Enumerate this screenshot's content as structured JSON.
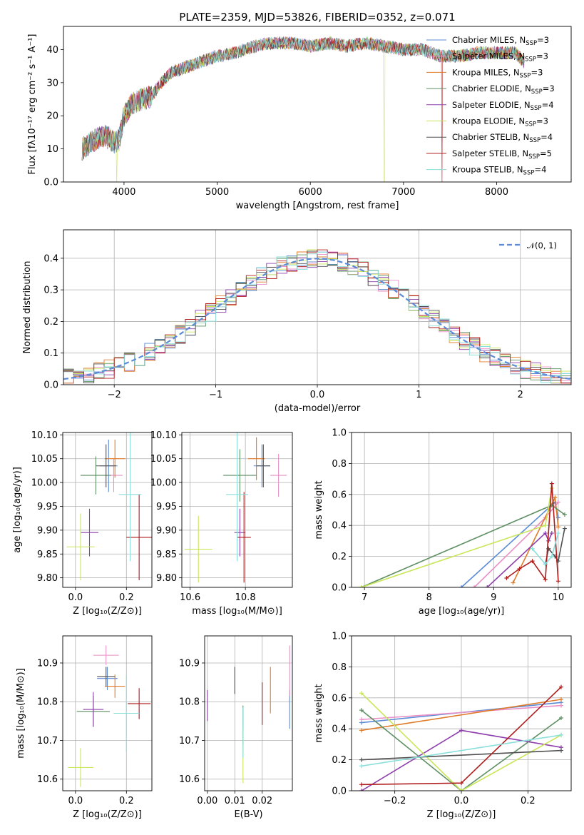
{
  "palette": [
    "#5b8bd6",
    "#e98fc6",
    "#e07b2a",
    "#5e8f63",
    "#8e3fac",
    "#c9e65a",
    "#505050",
    "#b01c1c",
    "#8adfdb"
  ],
  "chart_data": [
    {
      "id": "spectrum",
      "type": "line",
      "title": "PLATE=2359, MJD=53826, FIBERID=0352, z=0.071",
      "xlabel": "wavelength [Angstrom, rest frame]",
      "ylabel": "Flux [fλ10⁻¹⁷ erg cm⁻² s⁻¹ A⁻¹]",
      "xlim": [
        3350,
        8800
      ],
      "ylim": [
        0,
        47
      ],
      "xticks": [
        4000,
        5000,
        6000,
        7000,
        8000
      ],
      "yticks": [
        0,
        10,
        20,
        30,
        40
      ],
      "grid": false,
      "legend": "top-right",
      "continuum": {
        "x": [
          3550,
          3650,
          3700,
          3800,
          3900,
          3950,
          4000,
          4100,
          4200,
          4300,
          4400,
          4500,
          4700,
          4900,
          5000,
          5200,
          5400,
          5600,
          5800,
          6000,
          6200,
          6400,
          6600,
          6800,
          7000,
          7200,
          7400,
          7600,
          7800,
          8000,
          8200,
          8300
        ],
        "y": [
          10,
          12,
          13,
          14,
          12,
          13,
          20,
          24,
          25,
          26,
          30,
          33,
          35,
          37,
          38,
          39,
          41,
          42,
          42,
          41,
          42,
          41,
          42,
          41,
          40,
          40,
          38,
          38,
          39,
          39,
          39,
          36
        ]
      },
      "series": [
        {
          "name": "Chabrier MILES, N_SSP=3"
        },
        {
          "name": "Salpeter MILES, N_SSP=3"
        },
        {
          "name": "Kroupa MILES, N_SSP=3"
        },
        {
          "name": "Chabrier ELODIE, N_SSP=3"
        },
        {
          "name": "Salpeter ELODIE, N_SSP=4"
        },
        {
          "name": "Kroupa ELODIE, N_SSP=3"
        },
        {
          "name": "Chabrier STELIB, N_SSP=4"
        },
        {
          "name": "Salpeter STELIB, N_SSP=5"
        },
        {
          "name": "Kroupa STELIB, N_SSP=4"
        }
      ]
    },
    {
      "id": "residuals",
      "type": "histogram",
      "xlabel": "(data-model)/error",
      "ylabel": "Normed distribution",
      "xlim": [
        -2.5,
        2.5
      ],
      "ylim": [
        0,
        0.49
      ],
      "xticks": [
        -2,
        -1,
        0,
        1,
        2
      ],
      "yticks": [
        0.0,
        0.1,
        0.2,
        0.3,
        0.4
      ],
      "grid": true,
      "legend": "top-right",
      "reference_curve": {
        "name": "𝒩(0, 1)",
        "mean": 0,
        "sigma": 1,
        "style": "dashed"
      },
      "bin_width": 0.1
    },
    {
      "id": "age-vs-Z",
      "type": "errorbar",
      "xlabel": "Z [log₁₀(Z/Z⊙)]",
      "ylabel": "age  [log₁₀(age/yr)]",
      "xlim": [
        -0.05,
        0.3
      ],
      "ylim": [
        9.78,
        10.105
      ],
      "xticks": [
        0.0,
        0.2
      ],
      "yticks": [
        9.8,
        9.85,
        9.9,
        9.95,
        10.0,
        10.05,
        10.1
      ],
      "grid": true,
      "points": [
        {
          "x": 0.13,
          "y": 10.035,
          "xerr": 0.035,
          "yerr": 0.055
        },
        {
          "x": 0.15,
          "y": 10.015,
          "xerr": 0.035,
          "yerr": 0.035
        },
        {
          "x": 0.155,
          "y": 10.05,
          "xerr": 0.04,
          "yerr": 0.04
        },
        {
          "x": 0.08,
          "y": 10.015,
          "xerr": 0.06,
          "yerr": 0.04
        },
        {
          "x": 0.055,
          "y": 9.895,
          "xerr": 0.035,
          "yerr": 0.05
        },
        {
          "x": 0.02,
          "y": 9.865,
          "xerr": 0.055,
          "yerr": 0.07
        },
        {
          "x": 0.12,
          "y": 10.035,
          "xerr": 0.04,
          "yerr": 0.045
        },
        {
          "x": 0.25,
          "y": 9.885,
          "xerr": 0.05,
          "yerr": 0.09
        },
        {
          "x": 0.215,
          "y": 9.975,
          "xerr": 0.045,
          "yerr": 0.14
        }
      ]
    },
    {
      "id": "age-vs-mass",
      "type": "errorbar",
      "xlabel": "mass [log₁₀(M/M⊙)]",
      "xlim": [
        10.57,
        10.97
      ],
      "ylim": [
        9.78,
        10.105
      ],
      "xticks": [
        10.6,
        10.8
      ],
      "yticks": [
        9.8,
        9.85,
        9.9,
        9.95,
        10.0,
        10.05,
        10.1
      ],
      "grid": true,
      "points": [
        {
          "x": 10.86,
          "y": 10.035,
          "xerr": 0.03,
          "yerr": 0.045
        },
        {
          "x": 10.92,
          "y": 10.015,
          "xerr": 0.03,
          "yerr": 0.045
        },
        {
          "x": 10.84,
          "y": 10.05,
          "xerr": 0.03,
          "yerr": 0.045
        },
        {
          "x": 10.78,
          "y": 10.015,
          "xerr": 0.06,
          "yerr": 0.055
        },
        {
          "x": 10.78,
          "y": 9.895,
          "xerr": 0.02,
          "yerr": 0.05
        },
        {
          "x": 10.63,
          "y": 9.86,
          "xerr": 0.05,
          "yerr": 0.07
        },
        {
          "x": 10.865,
          "y": 10.035,
          "xerr": 0.025,
          "yerr": 0.045
        },
        {
          "x": 10.795,
          "y": 9.885,
          "xerr": 0.025,
          "yerr": 0.095
        },
        {
          "x": 10.77,
          "y": 9.975,
          "xerr": 0.04,
          "yerr": 0.14
        }
      ]
    },
    {
      "id": "mass-weight-vs-age",
      "type": "line",
      "xlabel": "age  [log₁₀(age/yr)]",
      "ylabel": "mass weight",
      "xlim": [
        6.8,
        10.2
      ],
      "ylim": [
        0,
        1
      ],
      "xticks": [
        7,
        8,
        9,
        10
      ],
      "yticks": [
        0.0,
        0.2,
        0.4,
        0.6,
        0.8,
        1.0
      ],
      "grid": true,
      "series": [
        {
          "x": [
            8.5,
            9.95,
            10.0
          ],
          "y": [
            0.0,
            0.55,
            0.45
          ]
        },
        {
          "x": [
            8.7,
            9.8,
            10.0
          ],
          "y": [
            0.0,
            0.45,
            0.55
          ]
        },
        {
          "x": [
            9.3,
            9.95,
            10.0
          ],
          "y": [
            0.03,
            0.58,
            0.39
          ]
        },
        {
          "x": [
            6.95,
            9.9,
            10.1
          ],
          "y": [
            0.0,
            0.53,
            0.47
          ]
        },
        {
          "x": [
            8.9,
            9.8,
            9.85,
            9.9
          ],
          "y": [
            0.0,
            0.35,
            0.3,
            0.35
          ]
        },
        {
          "x": [
            6.95,
            9.8,
            9.9
          ],
          "y": [
            0.0,
            0.4,
            0.64
          ]
        },
        {
          "x": [
            9.8,
            9.85,
            9.95,
            10.0,
            10.1
          ],
          "y": [
            0.15,
            0.25,
            0.2,
            0.17,
            0.38
          ]
        },
        {
          "x": [
            9.2,
            9.4,
            9.6,
            9.8,
            9.9,
            10.0
          ],
          "y": [
            0.06,
            0.12,
            0.17,
            0.05,
            0.67,
            0.04
          ]
        },
        {
          "x": [
            9.6,
            9.8,
            9.9,
            10.0
          ],
          "y": [
            0.25,
            0.15,
            0.2,
            0.35
          ]
        }
      ]
    },
    {
      "id": "mass-vs-Z",
      "type": "errorbar",
      "xlabel": "Z [log₁₀(Z/Z⊙)]",
      "ylabel": "mass [log₁₀(M/M⊙)]",
      "xlim": [
        -0.05,
        0.3
      ],
      "ylim": [
        10.57,
        10.97
      ],
      "xticks": [
        0.0,
        0.2
      ],
      "yticks": [
        10.6,
        10.7,
        10.8,
        10.9
      ],
      "grid": true,
      "points": [
        {
          "x": 0.125,
          "y": 10.86,
          "xerr": 0.04,
          "yerr": 0.03
        },
        {
          "x": 0.12,
          "y": 10.92,
          "xerr": 0.05,
          "yerr": 0.025
        },
        {
          "x": 0.155,
          "y": 10.84,
          "xerr": 0.04,
          "yerr": 0.03
        },
        {
          "x": 0.07,
          "y": 10.775,
          "xerr": 0.065,
          "yerr": 0.04
        },
        {
          "x": 0.07,
          "y": 10.78,
          "xerr": 0.04,
          "yerr": 0.045
        },
        {
          "x": 0.02,
          "y": 10.63,
          "xerr": 0.05,
          "yerr": 0.05
        },
        {
          "x": 0.12,
          "y": 10.865,
          "xerr": 0.035,
          "yerr": 0.025
        },
        {
          "x": 0.25,
          "y": 10.795,
          "xerr": 0.045,
          "yerr": 0.04
        },
        {
          "x": 0.2,
          "y": 10.77,
          "xerr": 0.05,
          "yerr": 0.1
        }
      ]
    },
    {
      "id": "mass-vs-EBV",
      "type": "errorbar",
      "xlabel": "E(B-V)",
      "xlim": [
        -0.001,
        0.031
      ],
      "ylim": [
        10.57,
        10.97
      ],
      "xticks": [
        0.0,
        0.01,
        0.02
      ],
      "yticks": [
        10.6,
        10.7,
        10.8,
        10.9
      ],
      "grid": true,
      "points": [
        {
          "x": 0.03,
          "y": 10.78,
          "xerr": 0,
          "yerr": 0.05
        },
        {
          "x": 0.03,
          "y": 10.88,
          "xerr": 0,
          "yerr": 0.065
        },
        {
          "x": 0.023,
          "y": 10.83,
          "xerr": 0,
          "yerr": 0.06
        },
        {
          "x": 0.013,
          "y": 10.74,
          "xerr": 0,
          "yerr": 0.05
        },
        {
          "x": 0.0,
          "y": 10.79,
          "xerr": 0,
          "yerr": 0.04
        },
        {
          "x": 0.013,
          "y": 10.66,
          "xerr": 0,
          "yerr": 0.07
        },
        {
          "x": 0.01,
          "y": 10.855,
          "xerr": 0,
          "yerr": 0.035
        },
        {
          "x": 0.02,
          "y": 10.795,
          "xerr": 0,
          "yerr": 0.055
        },
        {
          "x": 0.013,
          "y": 10.72,
          "xerr": 0,
          "yerr": 0.065
        }
      ]
    },
    {
      "id": "mass-weight-vs-Z",
      "type": "line",
      "xlabel": "Z [log₁₀(Z/Z⊙)]",
      "ylabel": "mass weight",
      "xlim": [
        -0.33,
        0.33
      ],
      "ylim": [
        0,
        1
      ],
      "xticks": [
        -0.2,
        0.0,
        0.2
      ],
      "yticks": [
        0.0,
        0.2,
        0.4,
        0.6,
        0.8,
        1.0
      ],
      "grid": true,
      "series": [
        {
          "x": [
            -0.3,
            0.3
          ],
          "y": [
            0.44,
            0.57
          ]
        },
        {
          "x": [
            -0.3,
            0.3
          ],
          "y": [
            0.46,
            0.55
          ]
        },
        {
          "x": [
            -0.3,
            0.3
          ],
          "y": [
            0.39,
            0.59
          ]
        },
        {
          "x": [
            -0.3,
            0.0,
            0.3
          ],
          "y": [
            0.52,
            0.0,
            0.47
          ]
        },
        {
          "x": [
            -0.3,
            0.0,
            0.3
          ],
          "y": [
            0.0,
            0.39,
            0.28
          ]
        },
        {
          "x": [
            -0.3,
            0.0,
            0.3
          ],
          "y": [
            0.63,
            0.0,
            0.36
          ]
        },
        {
          "x": [
            -0.3,
            0.3
          ],
          "y": [
            0.2,
            0.26
          ]
        },
        {
          "x": [
            -0.3,
            0.0,
            0.3
          ],
          "y": [
            0.04,
            0.05,
            0.67
          ]
        },
        {
          "x": [
            -0.3,
            0.3
          ],
          "y": [
            0.16,
            0.36
          ]
        }
      ]
    }
  ]
}
